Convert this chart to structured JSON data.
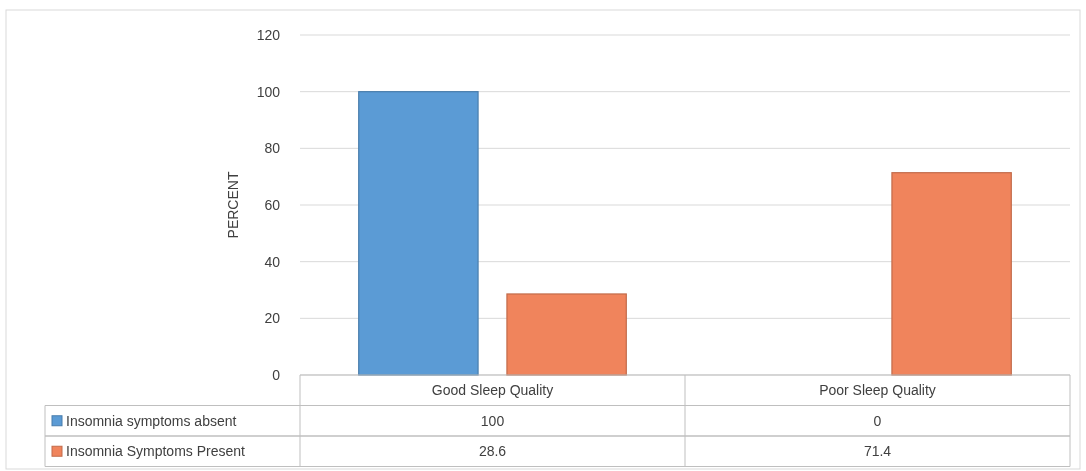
{
  "chart_data": {
    "type": "bar",
    "ylabel": "PERCENT",
    "categories": [
      "Good Sleep Quality",
      "Poor Sleep Quality"
    ],
    "series": [
      {
        "name": "Insomnia symptoms absent",
        "color": "#5b9bd5",
        "values": [
          100,
          0
        ]
      },
      {
        "name": "Insomnia Symptoms Present",
        "color": "#f0845c",
        "values": [
          28.6,
          71.4
        ]
      }
    ],
    "ylim": [
      0,
      120
    ],
    "yticks": [
      0,
      20,
      40,
      60,
      80,
      100,
      120
    ],
    "grid": "y",
    "legend": "bottom",
    "data_labels": true
  }
}
